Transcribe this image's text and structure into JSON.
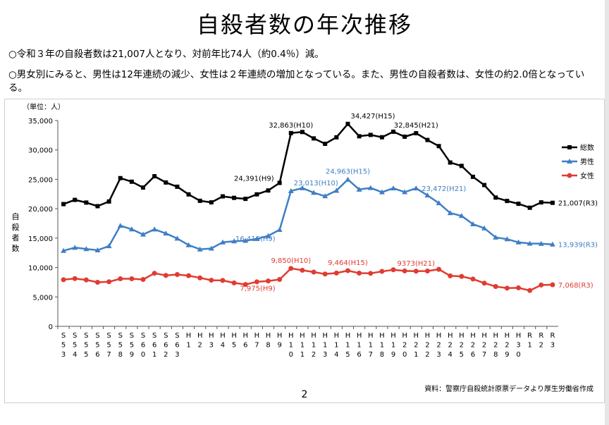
{
  "page": {
    "title": "自殺者数の年次推移",
    "bullet1": "○令和３年の自殺者数は21,007人となり、対前年比74人（約0.4％）減。",
    "bullet2": "○男女別にみると、男性は12年連続の減少、女性は２年連続の増加となっている。また、男性の自殺者数は、女性の約2.0倍となっている。",
    "source": "資料：警察庁自殺統計原票データより厚生労働省作成",
    "page_number": "2"
  },
  "colors": {
    "total": "#000000",
    "male": "#3f7fc4",
    "female": "#e03c31"
  },
  "chart_data": {
    "type": "line",
    "unit_label": "（単位：人）",
    "ylabel": "自殺者数",
    "ylim": [
      0,
      35000
    ],
    "yticks": [
      0,
      5000,
      10000,
      15000,
      20000,
      25000,
      30000,
      35000
    ],
    "ytick_labels": [
      "0",
      "5,000",
      "10,000",
      "15,000",
      "20,000",
      "25,000",
      "30,000",
      "35,000"
    ],
    "legend_position": "right",
    "categories": [
      "S53",
      "S54",
      "S55",
      "S56",
      "S57",
      "S58",
      "S59",
      "S60",
      "S61",
      "S62",
      "S63",
      "H1",
      "H2",
      "H3",
      "H4",
      "H5",
      "H6",
      "H7",
      "H8",
      "H9",
      "H10",
      "H11",
      "H12",
      "H13",
      "H14",
      "H15",
      "H16",
      "H17",
      "H18",
      "H19",
      "H20",
      "H21",
      "H22",
      "H23",
      "H24",
      "H25",
      "H26",
      "H27",
      "H28",
      "H29",
      "H30",
      "R1",
      "R2",
      "R3"
    ],
    "series": [
      {
        "name": "総数",
        "color_key": "total",
        "values": [
          20788,
          21503,
          21048,
          20434,
          21228,
          25202,
          24596,
          23599,
          25524,
          24460,
          23742,
          22436,
          21346,
          21084,
          22104,
          21851,
          21679,
          22445,
          23104,
          24391,
          32863,
          33048,
          31957,
          31042,
          32143,
          34427,
          32325,
          32552,
          32155,
          33093,
          32249,
          32845,
          31690,
          30651,
          27858,
          27283,
          25427,
          24025,
          21897,
          21321,
          20840,
          20169,
          21081,
          21007
        ],
        "annotations": [
          {
            "index": 19,
            "text": "24,391(H9)",
            "pos": "left"
          },
          {
            "index": 20,
            "text": "32,863(H10)",
            "pos": "above"
          },
          {
            "index": 25,
            "text": "34,427(H15)",
            "pos": "aboveRight"
          },
          {
            "index": 31,
            "text": "32,845(H21)",
            "pos": "above"
          },
          {
            "index": 43,
            "text": "21,007(R3)",
            "pos": "right"
          }
        ]
      },
      {
        "name": "男性",
        "color_key": "male",
        "values": [
          12859,
          13386,
          13155,
          12942,
          13654,
          17116,
          16508,
          15624,
          16497,
          15802,
          14934,
          13818,
          13102,
          13242,
          14296,
          14468,
          14560,
          14874,
          15393,
          16416,
          23013,
          23512,
          22727,
          22144,
          23080,
          24963,
          23272,
          23540,
          22813,
          23478,
          22831,
          23472,
          22283,
          20955,
          19273,
          18787,
          17386,
          16681,
          15121,
          14826,
          14290,
          14078,
          14055,
          13939
        ],
        "annotations": [
          {
            "index": 19,
            "text": "16,416(H9)",
            "pos": "belowLeft"
          },
          {
            "index": 20,
            "text": "23,013(H10)",
            "pos": "aboveRight"
          },
          {
            "index": 25,
            "text": "24,963(H15)",
            "pos": "above"
          },
          {
            "index": 31,
            "text": "23,472(H21)",
            "pos": "right"
          },
          {
            "index": 43,
            "text": "13,939(R3)",
            "pos": "right"
          }
        ]
      },
      {
        "name": "女性",
        "color_key": "female",
        "values": [
          7929,
          8117,
          7893,
          7492,
          7574,
          8086,
          8088,
          7975,
          9027,
          8658,
          8808,
          8618,
          8244,
          7842,
          7808,
          7383,
          7119,
          7571,
          7711,
          7975,
          9850,
          9536,
          9230,
          8898,
          9063,
          9464,
          9053,
          9012,
          9342,
          9615,
          9418,
          9373,
          9407,
          9696,
          8585,
          8496,
          8041,
          7344,
          6776,
          6495,
          6550,
          6091,
          7026,
          7068
        ],
        "annotations": [
          {
            "index": 19,
            "text": "7,975(H9)",
            "pos": "belowLeft"
          },
          {
            "index": 20,
            "text": "9,850(H10)",
            "pos": "above"
          },
          {
            "index": 25,
            "text": "9,464(H15)",
            "pos": "above"
          },
          {
            "index": 31,
            "text": "9373(H21)",
            "pos": "above"
          },
          {
            "index": 43,
            "text": "7,068(R3)",
            "pos": "right"
          }
        ]
      }
    ]
  }
}
